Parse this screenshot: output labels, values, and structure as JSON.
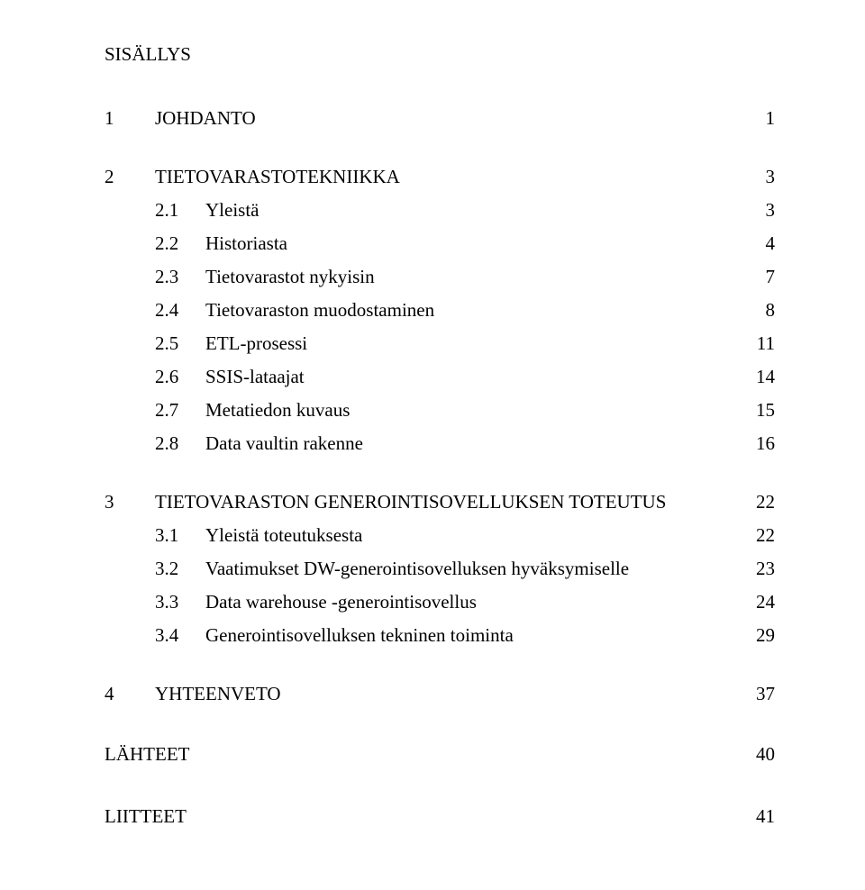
{
  "title": "SISÄLLYS",
  "sections": [
    {
      "num": "1",
      "label": "JOHDANTO",
      "page": "1",
      "subs": []
    },
    {
      "num": "2",
      "label": "TIETOVARASTOTEKNIIKKA",
      "page": "3",
      "subs": [
        {
          "num": "2.1",
          "label": "Yleistä",
          "page": "3"
        },
        {
          "num": "2.2",
          "label": "Historiasta",
          "page": "4"
        },
        {
          "num": "2.3",
          "label": "Tietovarastot nykyisin",
          "page": "7"
        },
        {
          "num": "2.4",
          "label": "Tietovaraston muodostaminen",
          "page": "8"
        },
        {
          "num": "2.5",
          "label": "ETL-prosessi",
          "page": "11"
        },
        {
          "num": "2.6",
          "label": "SSIS-lataajat",
          "page": "14"
        },
        {
          "num": "2.7",
          "label": "Metatiedon kuvaus",
          "page": "15"
        },
        {
          "num": "2.8",
          "label": "Data vaultin rakenne",
          "page": "16"
        }
      ]
    },
    {
      "num": "3",
      "label": "TIETOVARASTON GENEROINTISOVELLUKSEN TOTEUTUS",
      "page": "22",
      "subs": [
        {
          "num": "3.1",
          "label": "Yleistä toteutuksesta",
          "page": "22"
        },
        {
          "num": "3.2",
          "label": "Vaatimukset DW-generointisovelluksen hyväksymiselle",
          "page": "23"
        },
        {
          "num": "3.3",
          "label": "Data warehouse -generointisovellus",
          "page": "24"
        },
        {
          "num": "3.4",
          "label": "Generointisovelluksen tekninen toiminta",
          "page": "29"
        }
      ]
    },
    {
      "num": "4",
      "label": "YHTEENVETO",
      "page": "37",
      "subs": []
    }
  ],
  "tail": [
    {
      "label": "LÄHTEET",
      "page": "40"
    },
    {
      "label": "LIITTEET",
      "page": "41"
    }
  ]
}
